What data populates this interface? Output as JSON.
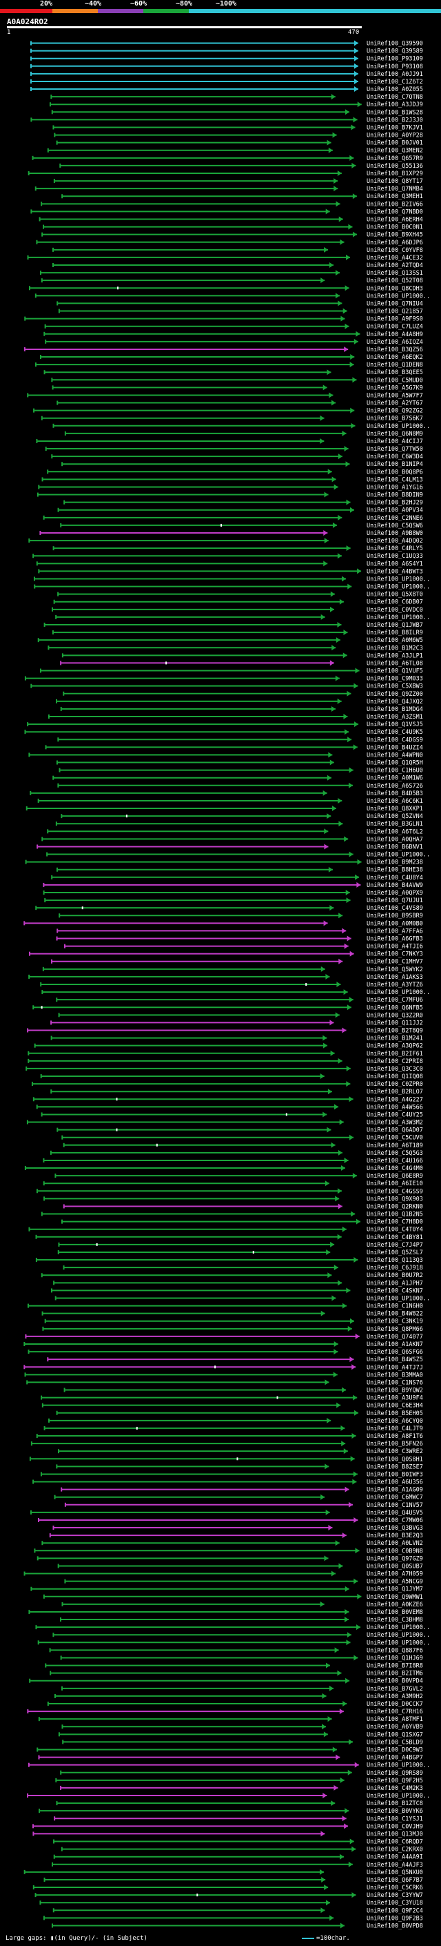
{
  "header": {
    "query_name": "A0A024RO2",
    "query_length_label": "470",
    "start_label": "1",
    "scale": [
      {
        "label": "20%",
        "color": "#e2161d"
      },
      {
        "label": "~40%",
        "color": "#f07f1e"
      },
      {
        "label": "~60%",
        "color": "#8a3fb5"
      },
      {
        "label": "~80%",
        "color": "#1aa53a"
      },
      {
        "label": "~100%",
        "color": "#31c4d5"
      }
    ]
  },
  "legend": {
    "large_gaps_text": "Large gaps: ▮(in Query)/- (in Subject)",
    "scale_text": "=100char."
  },
  "colors": {
    "cyan": "#31c4d5",
    "green": "#1aa53a",
    "magenta": "#c33cc9",
    "gap": "#ffffff",
    "bg": "#000000"
  },
  "chart_data": {
    "type": "alignment-map",
    "query_length": 470,
    "subject_names": [
      "UniRef100_Q39590",
      "UniRef100_Q39589",
      "UniRef100_P93109",
      "UniRef100_P93108",
      "UniRef100_A0JJ91",
      "UniRef100_C1Z6T2",
      "UniRef100_A0Z055",
      "UniRef100_C7QTN8",
      "UniRef100_A3JDJ9",
      "UniRef100_B1WS28",
      "UniRef100_B2J3J0",
      "UniRef100_B7KJV1",
      "UniRef100_A0YP28",
      "UniRef100_B0JV01",
      "UniRef100_Q3MEN2",
      "UniRef100_Q657R9",
      "UniRef100_Q55136",
      "UniRef100_B1XP29",
      "UniRef100_Q8YT17",
      "UniRef100_Q7NMB4",
      "UniRef100_Q3MEH1",
      "UniRef100_B2IV66",
      "UniRef100_Q7NBD0",
      "UniRef100_A6ERH4",
      "UniRef100_B0C0N1",
      "UniRef100_B9XH45",
      "UniRef100_A6DJP6",
      "UniRef100_C0YVF8",
      "UniRef100_A4CE32",
      "UniRef100_A2TQD4",
      "UniRef100_Q13SS1",
      "UniRef100_Q52T08",
      "UniRef100_Q8CDH3",
      "UniRef100_UP1000..",
      "UniRef100_Q7NIU4",
      "UniRef100_Q21857",
      "UniRef100_A9F9S0",
      "UniRef100_C7LUZ4",
      "UniRef100_A4A8H9",
      "UniRef100_A6IQZ4",
      "UniRef100_B3QZ56",
      "UniRef100_A6EQK2",
      "UniRef100_Q1DEN8",
      "UniRef100_B3QEE5",
      "UniRef100_C5MUD0",
      "UniRef100_A5G7K9",
      "UniRef100_A5W7F7",
      "UniRef100_A2YT67",
      "UniRef100_Q92ZG2",
      "UniRef100_B7S6K7",
      "UniRef100_UP1000..",
      "UniRef100_Q6N8M9",
      "UniRef100_A4CIJ7",
      "UniRef100_Q7TW50",
      "UniRef100_C6W3D4",
      "UniRef100_B1NIP4",
      "UniRef100_B0Q8P6",
      "UniRef100_C4LM13",
      "UniRef100_A1YG16",
      "UniRef100_B8DIN9",
      "UniRef100_B2HJ29",
      "UniRef100_A0PV34",
      "UniRef100_C2NNE6",
      "UniRef100_C5QSW6",
      "UniRef100_A9B8W0",
      "UniRef100_A4DQ02",
      "UniRef100_C4RLY5",
      "UniRef100_C1UQ33",
      "UniRef100_A6S4Y1",
      "UniRef100_A4BWT3",
      "UniRef100_UP1000..",
      "UniRef100_UP1000..",
      "UniRef100_Q5X8T0",
      "UniRef100_C6DB07",
      "UniRef100_C0VDC0",
      "UniRef100_UP1000..",
      "UniRef100_Q1JWB7",
      "UniRef100_B8ILR9",
      "UniRef100_A0M6W5",
      "UniRef100_B1M2C3",
      "UniRef100_A3JLP1",
      "UniRef100_A6TL08",
      "UniRef100_Q1VUF5",
      "UniRef100_C9M033",
      "UniRef100_C5XBW3",
      "UniRef100_Q9ZZ00",
      "UniRef100_Q4JXQ2",
      "UniRef100_B1MDG4",
      "UniRef100_A3ZSM1",
      "UniRef100_Q1VSJ5",
      "UniRef100_C4U9K5",
      "UniRef100_C4DGS9",
      "UniRef100_B4UZI4",
      "UniRef100_A4WPN0",
      "UniRef100_Q1QR5H",
      "UniRef100_C1H6U0",
      "UniRef100_A0M1W6",
      "UniRef100_A6S726",
      "UniRef100_B4D5B3",
      "UniRef100_A6C6K1",
      "UniRef100_Q8XKP1",
      "UniRef100_Q5ZVN4",
      "UniRef100_B3GLN1",
      "UniRef100_A6T6L2",
      "UniRef100_A0QHA7",
      "UniRef100_B6BNV1",
      "UniRef100_UP1000..",
      "UniRef100_B9M238",
      "UniRef100_B8HE38",
      "UniRef100_C4U8Y4",
      "UniRef100_B4AVW9",
      "UniRef100_A0QPX9",
      "UniRef100_Q7UJU1",
      "UniRef100_C4VS89",
      "UniRef100_B9SBR9",
      "UniRef100_A0M0B0",
      "UniRef100_A7FFA6",
      "UniRef100_A6GFB3",
      "UniRef100_A4TJI6",
      "UniRef100_C7NKY3",
      "UniRef100_C1MHV7",
      "UniRef100_Q5WYK2",
      "UniRef100_A1AKS3",
      "UniRef100_A3YTZ6",
      "UniRef100_UP1000..",
      "UniRef100_C7MFU6",
      "UniRef100_Q6NFB5",
      "UniRef100_Q3Z2R0",
      "UniRef100_Q11JJ2",
      "UniRef100_B2T8Q9",
      "UniRef100_B1M241",
      "UniRef100_A3QP62",
      "UniRef100_B2IF61",
      "UniRef100_C2PRI8",
      "UniRef100_Q3C3C0",
      "UniRef100_Q1IQ08",
      "UniRef100_C0ZPR0",
      "UniRef100_B2RLO7",
      "UniRef100_A4G227",
      "UniRef100_A4W566",
      "UniRef100_C4UY25",
      "UniRef100_A3W3M2",
      "UniRef100_Q6AD07",
      "UniRef100_C5CUV0",
      "UniRef100_A6T189",
      "UniRef100_C5Q5G3",
      "UniRef100_C4U166",
      "UniRef100_C4G4M0",
      "UniRef100_Q6E8R9",
      "UniRef100_A6IE10",
      "UniRef100_C4GSS9",
      "UniRef100_Q9X903",
      "UniRef100_Q2RKN0",
      "UniRef100_Q1B2N5",
      "UniRef100_C7H8D0",
      "UniRef100_C4T0Y4",
      "UniRef100_C4BY81",
      "UniRef100_C7J4P7",
      "UniRef100_Q5ZSL7",
      "UniRef100_Q113Q3",
      "UniRef100_C6J918",
      "UniRef100_B0U7R2",
      "UniRef100_A1JPH7",
      "UniRef100_C4SKN7",
      "UniRef100_UP1000..",
      "UniRef100_C1N6H0",
      "UniRef100_B4W822",
      "UniRef100_C3NK19",
      "UniRef100_Q8PM66",
      "UniRef100_Q74077",
      "UniRef100_A1AKN7",
      "UniRef100_Q6SFG6",
      "UniRef100_B4WSZ5",
      "UniRef100_A4TJ7J",
      "UniRef100_B3MMA0",
      "UniRef100_C1NS76",
      "UniRef100_B9YQW2",
      "UniRef100_A3U9F4",
      "UniRef100_C6E3H4",
      "UniRef100_B5EH05",
      "UniRef100_A6CYQ0",
      "UniRef100_C4LJT9",
      "UniRef100_A8F1T6",
      "UniRef100_B5FN26",
      "UniRef100_C3WRE2",
      "UniRef100_Q0S8H1",
      "UniRef100_B8ZSE7",
      "UniRef100_B0IWF3",
      "UniRef100_A6U356",
      "UniRef100_A1AG09",
      "UniRef100_C6MWC7",
      "UniRef100_C1NV57",
      "UniRef100_Q4USV5",
      "UniRef100_C7MW06",
      "UniRef100_Q3BVG3",
      "UniRef100_B3E2Q3",
      "UniRef100_A0LVN2",
      "UniRef100_C0B9N8",
      "UniRef100_Q97GZ9",
      "UniRef100_Q0SUB7",
      "UniRef100_A7H059",
      "UniRef100_A5NCG9",
      "UniRef100_Q1JYM7",
      "UniRef100_Q9WMW1",
      "UniRef100_A0KZE6",
      "UniRef100_B0VEM8",
      "UniRef100_C3BHM8",
      "UniRef100_UP1000..",
      "UniRef100_UP1000..",
      "UniRef100_UP1000..",
      "UniRef100_Q887F6",
      "UniRef100_Q1HJ69",
      "UniRef100_B7I8R8",
      "UniRef100_B2ITM6",
      "UniRef100_B0VPD4",
      "UniRef100_B7GVL2",
      "UniRef100_A3M9H2",
      "UniRef100_D0CCK7",
      "UniRef100_C7RH16",
      "UniRef100_A8TMF1",
      "UniRef100_A6YVB9",
      "UniRef100_Q1SXG7",
      "UniRef100_C5BLD9",
      "UniRef100_D0C9W3",
      "UniRef100_A4BGP7",
      "UniRef100_UP1000..",
      "UniRef100_Q9RS89",
      "UniRef100_Q9F2H5",
      "UniRef100_C4M2K3",
      "UniRef100_UP1000..",
      "UniRef100_B1ZTC8",
      "UniRef100_B0VYK6",
      "UniRef100_C1YSJ1",
      "UniRef100_C0VJH9",
      "UniRef100_Q13MJ0",
      "UniRef100_C6RQD7",
      "UniRef100_C2KRX0",
      "UniRef100_A4AA9I",
      "UniRef100_A4AJF3",
      "UniRef100_Q5NXU0",
      "UniRef100_Q6F7B7",
      "UniRef100_C5CRK6",
      "UniRef100_C3YYW7",
      "UniRef100_C3YU18",
      "UniRef100_Q9F2C4",
      "UniRef100_Q9F2B3",
      "UniRef100_B0VPD8"
    ],
    "subject_colors": "cccccccgggggggggggggggggggggggggggggggggmgggggggggggggggggggggggmggggggggggggggggmgggggggggggggggggggggggmggggmggggmmmmmmgggggggmmggggggggggggggggggggggmggggggggggggggggmggmmgggggggggggggggmgmgmmmggggggggggggggggggggggmgggggmmggmmggmmmggggggggggggmgmggmgmgggggggggggggggmmggggggggggmgggggggggggggggggmmmmgggmmggggmmmgmmggmggmmmgmmmm"
  }
}
